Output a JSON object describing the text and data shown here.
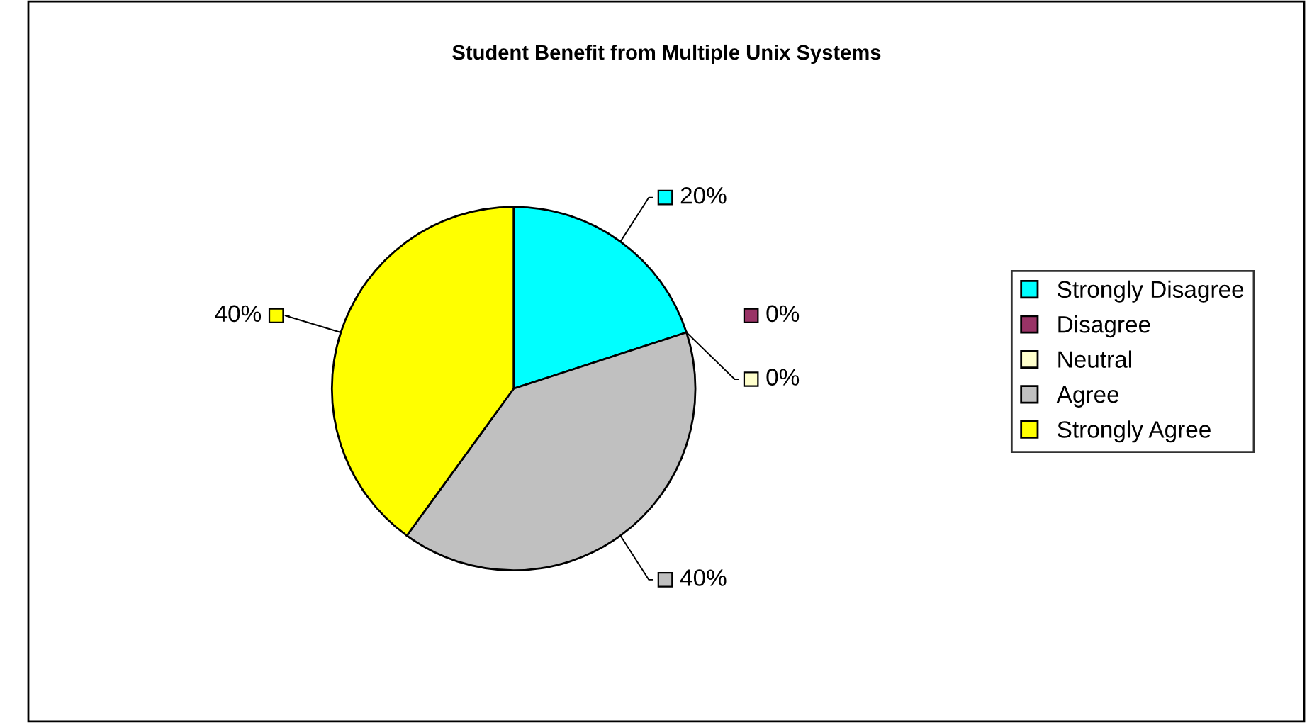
{
  "chart_data": {
    "type": "pie",
    "title": "Student Benefit from Multiple Unix Systems",
    "categories": [
      "Strongly Disagree",
      "Disagree",
      "Neutral",
      "Agree",
      "Strongly Agree"
    ],
    "values": [
      20,
      0,
      0,
      40,
      40
    ],
    "colors": [
      "#00ffff",
      "#993366",
      "#ffffcc",
      "#c0c0c0",
      "#ffff00"
    ],
    "value_labels": [
      "20%",
      "0%",
      "0%",
      "40%",
      "40%"
    ],
    "legend": "right"
  }
}
